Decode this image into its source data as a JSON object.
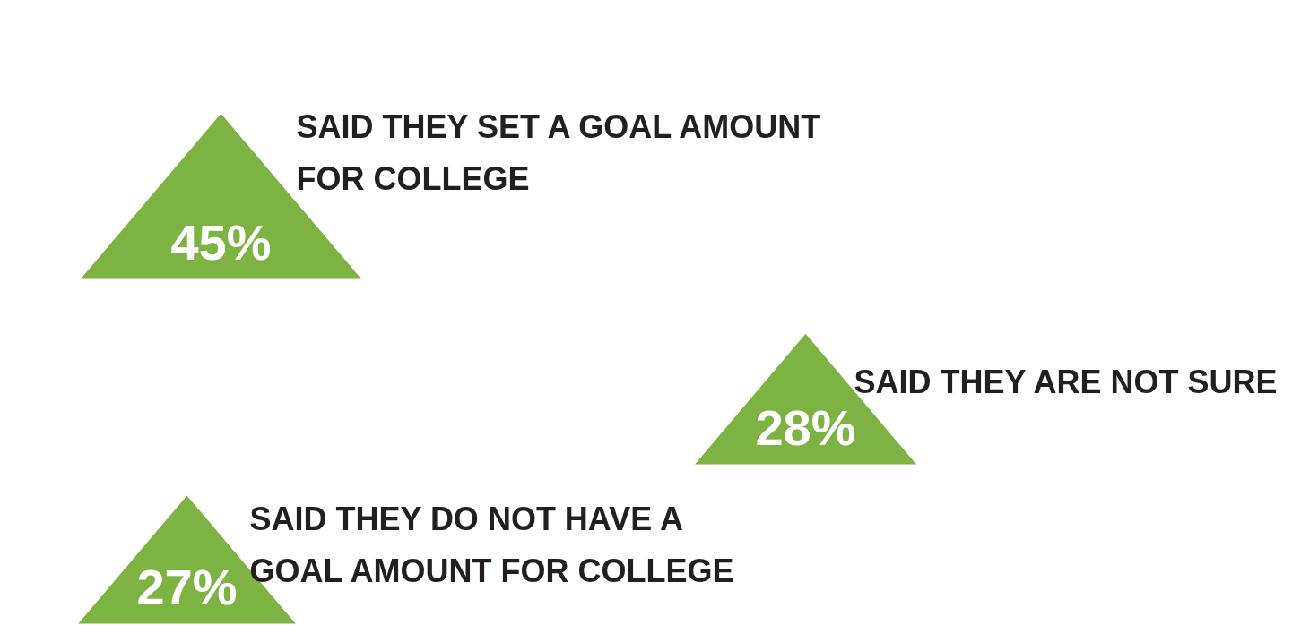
{
  "chart_data": {
    "type": "other",
    "categories": [
      "SAID THEY SET A GOAL AMOUNT FOR COLLEGE",
      "SAID THEY ARE NOT SURE",
      "SAID THEY DO NOT HAVE A GOAL AMOUNT FOR COLLEGE"
    ],
    "values": [
      45,
      28,
      27
    ],
    "value_labels": [
      "45%",
      "28%",
      "27%"
    ],
    "color": "#7cb342"
  }
}
